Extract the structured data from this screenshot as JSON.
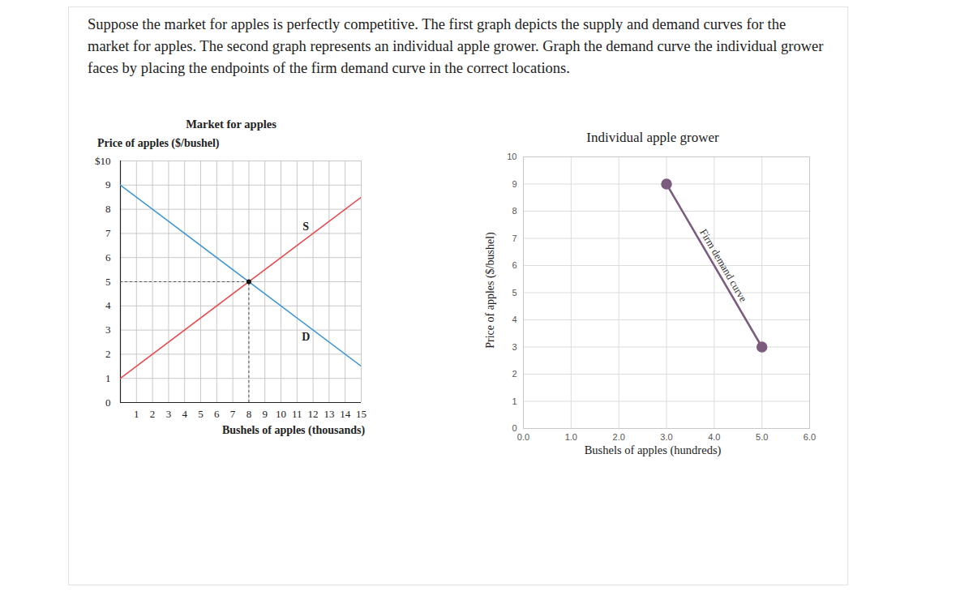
{
  "question": "Suppose the market for apples is perfectly competitive. The first graph depicts the supply and demand curves for the market for apples. The second graph represents an individual apple grower. Graph the demand curve the individual grower faces by placing the endpoints of the firm demand curve in the correct locations.",
  "chart_data": [
    {
      "type": "line",
      "title": "Market for apples",
      "y_label": "Price of apples ($/bushel)",
      "x_label": "Bushels of apples (thousands)",
      "xlim": [
        0,
        15
      ],
      "ylim": [
        0,
        10
      ],
      "xticks": [
        1,
        2,
        3,
        4,
        5,
        6,
        7,
        8,
        9,
        10,
        11,
        12,
        13,
        14,
        15
      ],
      "yticks": [
        0,
        1,
        2,
        3,
        4,
        5,
        6,
        7,
        8,
        9,
        {
          "value": 10,
          "label": "$10"
        }
      ],
      "grid": true,
      "series": [
        {
          "name": "S",
          "color": "#e8474c",
          "x": [
            0,
            15
          ],
          "values": [
            1,
            8.5
          ]
        },
        {
          "name": "D",
          "color": "#3a94d6",
          "x": [
            0,
            15
          ],
          "values": [
            9,
            1.5
          ]
        }
      ],
      "equilibrium": {
        "x": 8,
        "y": 5
      }
    },
    {
      "type": "line",
      "title": "Individual apple grower",
      "y_label": "Price of apples ($/bushel)",
      "x_label": "Bushels of apples (hundreds)",
      "xlim": [
        0,
        6
      ],
      "ylim": [
        0,
        10
      ],
      "xticks": [
        {
          "value": 0,
          "label": "0.0"
        },
        {
          "value": 1,
          "label": "1.0"
        },
        {
          "value": 2,
          "label": "2.0"
        },
        {
          "value": 3,
          "label": "3.0"
        },
        {
          "value": 4,
          "label": "4.0"
        },
        {
          "value": 5,
          "label": "5.0"
        },
        {
          "value": 6,
          "label": "6.0"
        }
      ],
      "yticks": [
        0,
        1,
        2,
        3,
        4,
        5,
        6,
        7,
        8,
        9,
        10
      ],
      "grid": true,
      "series": [
        {
          "name": "Firm demand curve",
          "color": "#7b5b7e",
          "x": [
            3,
            5
          ],
          "values": [
            9,
            3
          ],
          "marker": "circle"
        }
      ]
    }
  ]
}
